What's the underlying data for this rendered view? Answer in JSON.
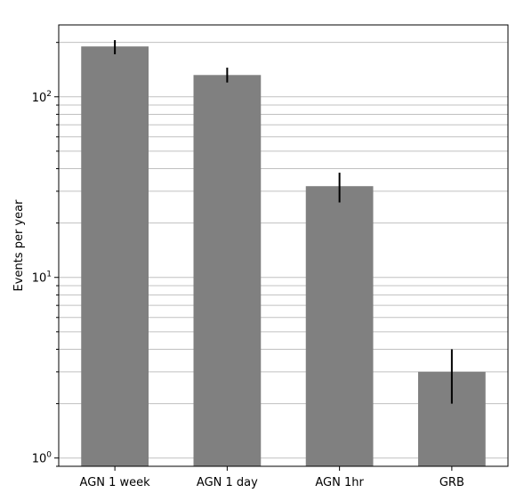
{
  "chart_data": {
    "type": "bar",
    "categories": [
      "AGN 1 week",
      "AGN 1 day",
      "AGN 1hr",
      "GRB"
    ],
    "values": [
      190,
      132,
      32,
      3
    ],
    "error_bars": [
      {
        "low": 172,
        "high": 206
      },
      {
        "low": 120,
        "high": 145
      },
      {
        "low": 26,
        "high": 38
      },
      {
        "low": 2,
        "high": 4
      }
    ],
    "title": "",
    "xlabel": "",
    "ylabel": "Events per year",
    "yscale": "log",
    "ylim": [
      0.9,
      250
    ],
    "yticks": [
      {
        "value": 1,
        "base": "10",
        "exp": "0"
      },
      {
        "value": 10,
        "base": "10",
        "exp": "1"
      },
      {
        "value": 100,
        "base": "10",
        "exp": "2"
      }
    ],
    "grid": "horizontal, major and minor",
    "bar_color": "#808080",
    "error_color": "#000000",
    "grid_color": "#c0c0c0"
  }
}
